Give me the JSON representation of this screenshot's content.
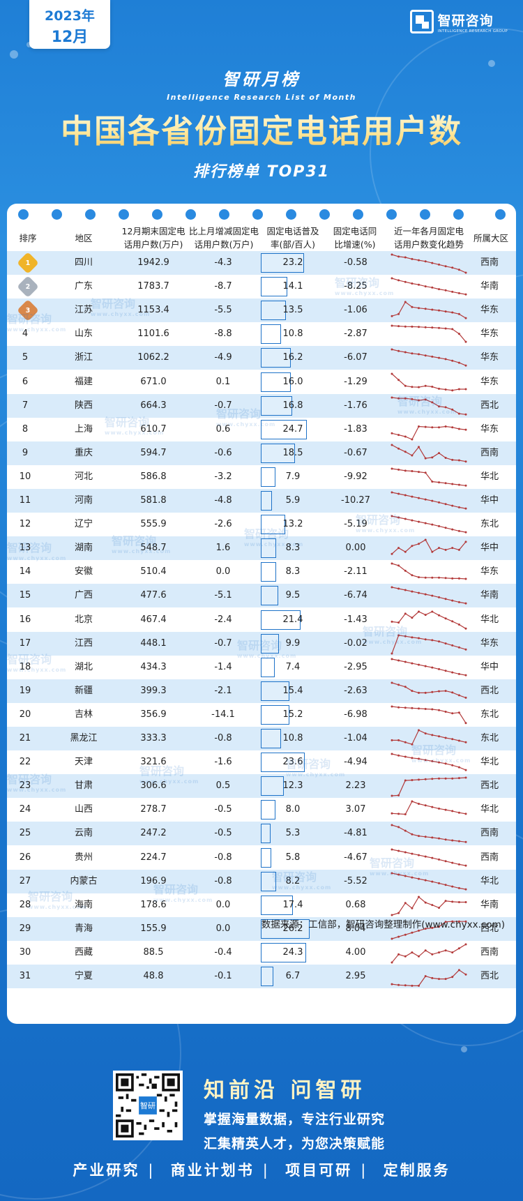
{
  "header": {
    "year": "2023年",
    "month": "12月",
    "brand_cn": "智研咨询",
    "brand_en": "INTELLIGENCE RESEARCH GROUP",
    "list_title": "智研月榜",
    "list_title_en": "Intelligence Research List of Month",
    "main_title": "中国各省份固定电话用户数",
    "rank_label": "排行榜单  TOP31"
  },
  "table": {
    "headers": {
      "rank": "排序",
      "region": "地区",
      "users": [
        "12月期末固定电",
        "话用户数(万户)"
      ],
      "change": [
        "比上月增减固定电",
        "话用户数(万户)"
      ],
      "penetration": [
        "固定电话普及",
        "率(部/百人)"
      ],
      "yoy": [
        "固定电话同",
        "比增速(%)"
      ],
      "trend": [
        "近一年各月固定电",
        "话用户数变化趋势"
      ],
      "area": "所属大区"
    },
    "rows": [
      {
        "rank": "1",
        "region": "四川",
        "users": "1942.9",
        "change": "-4.3",
        "penetration": "23.2",
        "yoy": "-0.58",
        "area": "西南"
      },
      {
        "rank": "2",
        "region": "广东",
        "users": "1783.7",
        "change": "-8.7",
        "penetration": "14.1",
        "yoy": "-8.25",
        "area": "华南"
      },
      {
        "rank": "3",
        "region": "江苏",
        "users": "1153.4",
        "change": "-5.5",
        "penetration": "13.5",
        "yoy": "-1.06",
        "area": "华东"
      },
      {
        "rank": "4",
        "region": "山东",
        "users": "1101.6",
        "change": "-8.8",
        "penetration": "10.8",
        "yoy": "-2.87",
        "area": "华东"
      },
      {
        "rank": "5",
        "region": "浙江",
        "users": "1062.2",
        "change": "-4.9",
        "penetration": "16.2",
        "yoy": "-6.07",
        "area": "华东"
      },
      {
        "rank": "6",
        "region": "福建",
        "users": "671.0",
        "change": "0.1",
        "penetration": "16.0",
        "yoy": "-1.29",
        "area": "华东"
      },
      {
        "rank": "7",
        "region": "陕西",
        "users": "664.3",
        "change": "-0.7",
        "penetration": "16.8",
        "yoy": "-1.76",
        "area": "西北"
      },
      {
        "rank": "8",
        "region": "上海",
        "users": "610.7",
        "change": "0.6",
        "penetration": "24.7",
        "yoy": "-1.83",
        "area": "华东"
      },
      {
        "rank": "9",
        "region": "重庆",
        "users": "594.7",
        "change": "-0.6",
        "penetration": "18.5",
        "yoy": "-0.67",
        "area": "西南"
      },
      {
        "rank": "10",
        "region": "河北",
        "users": "586.8",
        "change": "-3.2",
        "penetration": "7.9",
        "yoy": "-9.92",
        "area": "华北"
      },
      {
        "rank": "11",
        "region": "河南",
        "users": "581.8",
        "change": "-4.8",
        "penetration": "5.9",
        "yoy": "-10.27",
        "area": "华中"
      },
      {
        "rank": "12",
        "region": "辽宁",
        "users": "555.9",
        "change": "-2.6",
        "penetration": "13.2",
        "yoy": "-5.19",
        "area": "东北"
      },
      {
        "rank": "13",
        "region": "湖南",
        "users": "548.7",
        "change": "1.6",
        "penetration": "8.3",
        "yoy": "0.00",
        "area": "华中"
      },
      {
        "rank": "14",
        "region": "安徽",
        "users": "510.4",
        "change": "0.0",
        "penetration": "8.3",
        "yoy": "-2.11",
        "area": "华东"
      },
      {
        "rank": "15",
        "region": "广西",
        "users": "477.6",
        "change": "-5.1",
        "penetration": "9.5",
        "yoy": "-6.74",
        "area": "华南"
      },
      {
        "rank": "16",
        "region": "北京",
        "users": "467.4",
        "change": "-2.4",
        "penetration": "21.4",
        "yoy": "-1.43",
        "area": "华北"
      },
      {
        "rank": "17",
        "region": "江西",
        "users": "448.1",
        "change": "-0.7",
        "penetration": "9.9",
        "yoy": "-0.02",
        "area": "华东"
      },
      {
        "rank": "18",
        "region": "湖北",
        "users": "434.3",
        "change": "-1.4",
        "penetration": "7.4",
        "yoy": "-2.95",
        "area": "华中"
      },
      {
        "rank": "19",
        "region": "新疆",
        "users": "399.3",
        "change": "-2.1",
        "penetration": "15.4",
        "yoy": "-2.63",
        "area": "西北"
      },
      {
        "rank": "20",
        "region": "吉林",
        "users": "356.9",
        "change": "-14.1",
        "penetration": "15.2",
        "yoy": "-6.98",
        "area": "东北"
      },
      {
        "rank": "21",
        "region": "黑龙江",
        "users": "333.3",
        "change": "-0.8",
        "penetration": "10.8",
        "yoy": "-1.04",
        "area": "东北"
      },
      {
        "rank": "22",
        "region": "天津",
        "users": "321.6",
        "change": "-1.6",
        "penetration": "23.6",
        "yoy": "-4.94",
        "area": "华北"
      },
      {
        "rank": "23",
        "region": "甘肃",
        "users": "306.6",
        "change": "0.5",
        "penetration": "12.3",
        "yoy": "2.23",
        "area": "西北"
      },
      {
        "rank": "24",
        "region": "山西",
        "users": "278.7",
        "change": "-0.5",
        "penetration": "8.0",
        "yoy": "3.07",
        "area": "华北"
      },
      {
        "rank": "25",
        "region": "云南",
        "users": "247.2",
        "change": "-0.5",
        "penetration": "5.3",
        "yoy": "-4.81",
        "area": "西南"
      },
      {
        "rank": "26",
        "region": "贵州",
        "users": "224.7",
        "change": "-0.8",
        "penetration": "5.8",
        "yoy": "-4.67",
        "area": "西南"
      },
      {
        "rank": "27",
        "region": "内蒙古",
        "users": "196.9",
        "change": "-0.8",
        "penetration": "8.2",
        "yoy": "-5.52",
        "area": "华北"
      },
      {
        "rank": "28",
        "region": "海南",
        "users": "178.6",
        "change": "0.0",
        "penetration": "17.4",
        "yoy": "0.68",
        "area": "华南"
      },
      {
        "rank": "29",
        "region": "青海",
        "users": "155.9",
        "change": "0.0",
        "penetration": "26.2",
        "yoy": "8.04",
        "area": "西北"
      },
      {
        "rank": "30",
        "region": "西藏",
        "users": "88.5",
        "change": "-0.4",
        "penetration": "24.3",
        "yoy": "4.00",
        "area": "西南"
      },
      {
        "rank": "31",
        "region": "宁夏",
        "users": "48.8",
        "change": "-0.1",
        "penetration": "6.7",
        "yoy": "2.95",
        "area": "西北"
      }
    ],
    "trends": [
      [
        10,
        9,
        8.6,
        7.8,
        7.2,
        6.6,
        5.8,
        5,
        4.2,
        3.5,
        2.5,
        1
      ],
      [
        10,
        9,
        8.2,
        7.4,
        6.8,
        6,
        5.4,
        4.6,
        4,
        3.3,
        2.6,
        2
      ],
      [
        3,
        4,
        10,
        7.5,
        7,
        6.6,
        6.2,
        5.8,
        5.3,
        4.8,
        4,
        2
      ],
      [
        10,
        9.8,
        9.6,
        9.5,
        9.4,
        9.2,
        9.1,
        8.9,
        8.6,
        8.3,
        6,
        2
      ],
      [
        10,
        9.2,
        8.6,
        8,
        7.6,
        7,
        6.4,
        5.8,
        5.2,
        4.4,
        3.4,
        2
      ],
      [
        10,
        7,
        4,
        3.5,
        3.4,
        4,
        3.6,
        2.6,
        2.2,
        1.8,
        2.4,
        2.4
      ],
      [
        10,
        9.6,
        9.6,
        9.2,
        8.6,
        9,
        7.6,
        5.6,
        5.2,
        4,
        2,
        1.6
      ],
      [
        4,
        3.2,
        2.4,
        1,
        7.4,
        7.2,
        7,
        7,
        7.4,
        7,
        6.2,
        5.8
      ],
      [
        10,
        8.2,
        6.6,
        4.8,
        9,
        3.4,
        3.8,
        6,
        3.6,
        2.6,
        2.4,
        1.8
      ],
      [
        10,
        9.5,
        9,
        8.8,
        8.4,
        8,
        3.6,
        3.2,
        2.8,
        2.4,
        2,
        1.6
      ],
      [
        10,
        9.3,
        8.6,
        7.9,
        7.2,
        6.5,
        5.8,
        5,
        4.2,
        3.4,
        2.6,
        2
      ],
      [
        10,
        9.3,
        8.6,
        7.9,
        7.2,
        6.5,
        5.8,
        5,
        4.2,
        3.4,
        2.6,
        2
      ],
      [
        3,
        6,
        4,
        7,
        8,
        10,
        4,
        6,
        5,
        6,
        5,
        9
      ],
      [
        10,
        9,
        6.4,
        4.2,
        3.2,
        3,
        3,
        3,
        2.8,
        2.6,
        2.6,
        2.4
      ],
      [
        10,
        9.3,
        8.6,
        7.9,
        7.2,
        6.5,
        5.8,
        5,
        4.2,
        3.4,
        2.6,
        2
      ],
      [
        5,
        4.6,
        9,
        7,
        10,
        8.4,
        10,
        8.2,
        6.6,
        5.2,
        3.6,
        1.6
      ],
      [
        1,
        10,
        9.6,
        9,
        8.6,
        8,
        7.6,
        7,
        6,
        5,
        4,
        3
      ],
      [
        10,
        9.3,
        8.6,
        7.9,
        7.2,
        6.5,
        5.8,
        5,
        4.2,
        3.4,
        2.6,
        2
      ],
      [
        10,
        9,
        8,
        6,
        5,
        5,
        5.4,
        5.8,
        6,
        5.2,
        3.8,
        2.6
      ],
      [
        10,
        9.6,
        9.4,
        9.2,
        9,
        8.8,
        8.6,
        8.2,
        7.4,
        6.6,
        7,
        1.8
      ],
      [
        5,
        5,
        4,
        3,
        10,
        8.4,
        7.6,
        7,
        6.2,
        5.6,
        4.8,
        4
      ],
      [
        10,
        9.2,
        8.6,
        8,
        7.6,
        7,
        6.4,
        5.8,
        5.2,
        4.4,
        3.4,
        2
      ],
      [
        1,
        1.2,
        8.6,
        8.8,
        9,
        9.2,
        9.4,
        9.6,
        9.6,
        9.6,
        9.8,
        10
      ],
      [
        4,
        3.8,
        3.6,
        10,
        8.8,
        8,
        7.2,
        6.4,
        5.8,
        5.2,
        4.4,
        3.8
      ],
      [
        10,
        9,
        7.2,
        5.4,
        4.6,
        4.2,
        3.8,
        3.4,
        2.8,
        2.4,
        2,
        1.6
      ],
      [
        10,
        9.3,
        8.6,
        7.9,
        7.2,
        6.5,
        5.8,
        5,
        4.2,
        3.4,
        2.6,
        2
      ],
      [
        10,
        9.3,
        8.6,
        7.9,
        7.2,
        6.5,
        5.8,
        5,
        4.2,
        3.4,
        2.6,
        2
      ],
      [
        1,
        2,
        7,
        4.4,
        10,
        7.2,
        6,
        4.6,
        8,
        7.6,
        7.4,
        7.4
      ],
      [
        1,
        2,
        3,
        4,
        5,
        6,
        6.4,
        7,
        9.4,
        9.6,
        9.6,
        9.6
      ],
      [
        1,
        5,
        4,
        6,
        4,
        7,
        5,
        6,
        7,
        6,
        8,
        10
      ],
      [
        2,
        1.6,
        1.4,
        1.2,
        1.2,
        6,
        5,
        4.6,
        4.6,
        5.6,
        9,
        6.8
      ]
    ],
    "source_note": "数据来源：工信部，智研咨询整理制作(www.chyxx.com)"
  },
  "watermark": {
    "cn": "智研咨询",
    "url": "www.chyxx.com"
  },
  "footer": {
    "slogan": "知前沿  问智研",
    "line2": "掌握海量数据，专注行业研究",
    "line3": "汇集精英人才，为您决策赋能",
    "nav": [
      "产业研究",
      "商业计划书",
      "项目可研",
      "定制服务"
    ],
    "qr_badge": "智研"
  },
  "colors": {
    "primary_blue": "#1d7ad4",
    "row_alt": "#d9ebfa",
    "sparkline": "#b33a3a",
    "title_gold": "#ffe9a0"
  }
}
